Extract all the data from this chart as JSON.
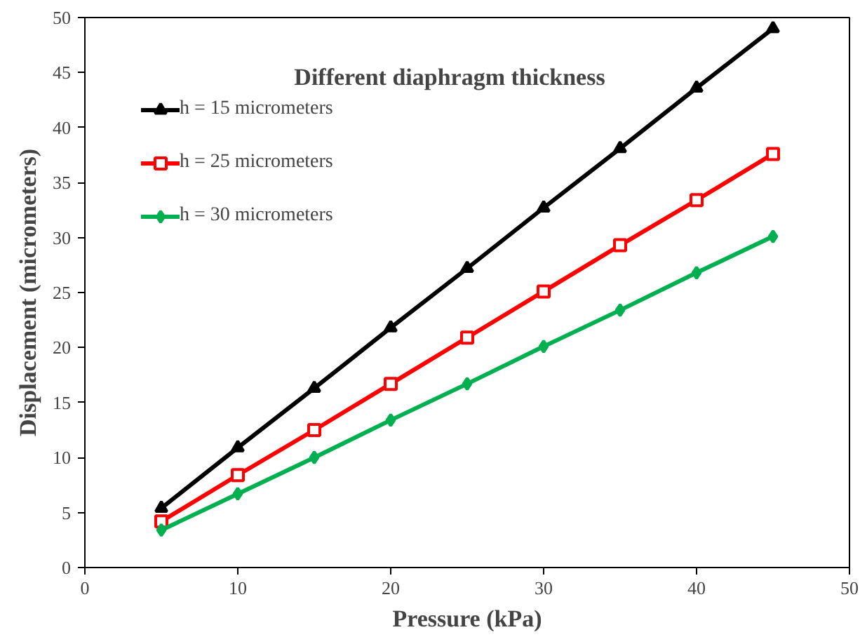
{
  "chart_data": {
    "type": "line",
    "title": "Different diaphragm thickness",
    "xlabel": "Pressure (kPa)",
    "ylabel": "Displacement (micrometers)",
    "x": [
      5,
      10,
      15,
      20,
      25,
      30,
      35,
      40,
      45
    ],
    "xlim": [
      0,
      50
    ],
    "xticks": [
      0,
      10,
      20,
      30,
      40,
      50
    ],
    "ylim": [
      0,
      50
    ],
    "yticks": [
      0,
      5,
      10,
      15,
      20,
      25,
      30,
      35,
      40,
      45,
      50
    ],
    "grid": false,
    "legend": "top left",
    "line_style": "solid",
    "series": [
      {
        "name": "h = 15 micrometers",
        "color": "#000000",
        "marker": "triangle",
        "values": [
          5.4,
          10.9,
          16.3,
          21.8,
          27.2,
          32.7,
          38.1,
          43.6,
          49.0
        ]
      },
      {
        "name": "h = 25 micrometers",
        "color": "#ff0000",
        "marker": "square",
        "values": [
          4.2,
          8.4,
          12.5,
          16.7,
          20.9,
          25.1,
          29.3,
          33.4,
          37.6
        ]
      },
      {
        "name": "h = 30 micrometers",
        "color": "#00b050",
        "marker": "diamond",
        "values": [
          3.4,
          6.7,
          10.0,
          13.4,
          16.7,
          20.1,
          23.4,
          26.8,
          30.1
        ]
      }
    ]
  }
}
